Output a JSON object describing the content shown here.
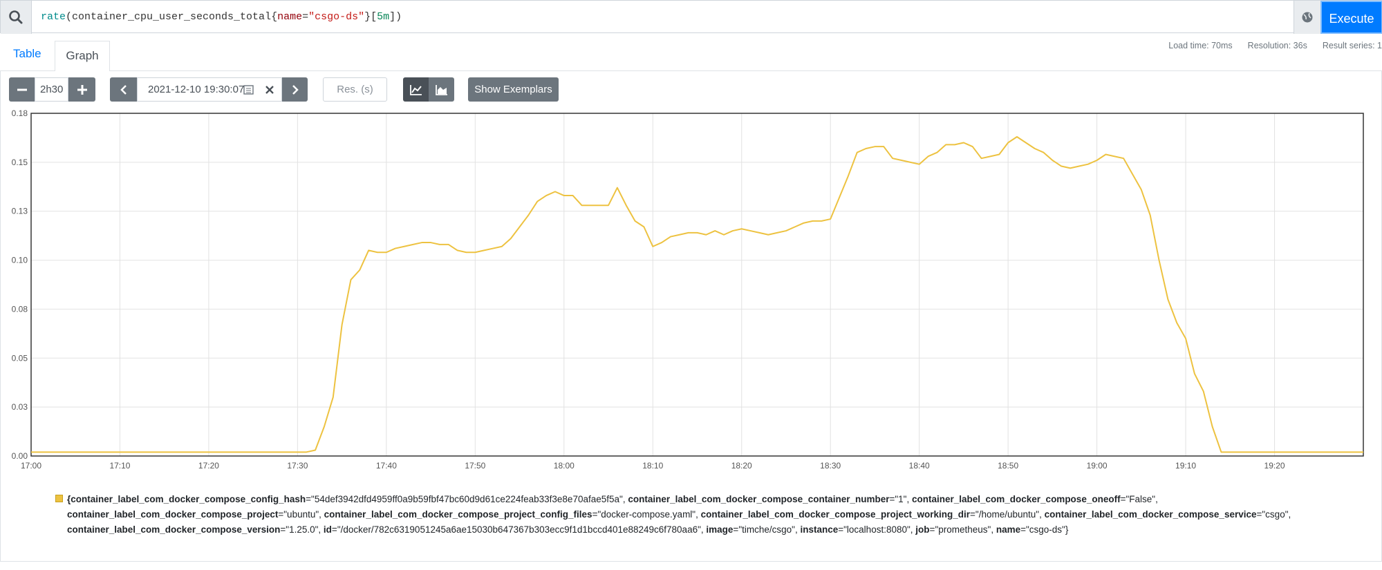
{
  "query": {
    "segments": [
      {
        "text": "rate",
        "color": "#008b8b"
      },
      {
        "text": "(container_cpu_user_seconds_total{",
        "color": "#333333"
      },
      {
        "text": "name",
        "color": "#93000a"
      },
      {
        "text": "=",
        "color": "#333333"
      },
      {
        "text": "\"csgo-ds\"",
        "color": "#c41a16"
      },
      {
        "text": "}[",
        "color": "#333333"
      },
      {
        "text": "5m",
        "color": "#098658"
      },
      {
        "text": "])",
        "color": "#333333"
      }
    ],
    "execute": "Execute"
  },
  "tabs": [
    "Table",
    "Graph"
  ],
  "stats": [
    "Load time: 70ms",
    "Resolution: 36s",
    "Result series: 1"
  ],
  "controls": {
    "range": "2h30",
    "end_time": "2021-12-10 19:30:07",
    "resolution_placeholder": "Res. (s)",
    "exemplars": "Show Exemplars"
  },
  "chart_data": {
    "type": "line",
    "x": [
      "17:00",
      "17:01",
      "17:02",
      "17:03",
      "17:04",
      "17:05",
      "17:06",
      "17:07",
      "17:08",
      "17:09",
      "17:10",
      "17:11",
      "17:12",
      "17:13",
      "17:14",
      "17:15",
      "17:16",
      "17:17",
      "17:18",
      "17:19",
      "17:20",
      "17:21",
      "17:22",
      "17:23",
      "17:24",
      "17:25",
      "17:26",
      "17:27",
      "17:28",
      "17:29",
      "17:30",
      "17:31",
      "17:32",
      "17:33",
      "17:34",
      "17:35",
      "17:36",
      "17:37",
      "17:38",
      "17:39",
      "17:40",
      "17:41",
      "17:42",
      "17:43",
      "17:44",
      "17:45",
      "17:46",
      "17:47",
      "17:48",
      "17:49",
      "17:50",
      "17:51",
      "17:52",
      "17:53",
      "17:54",
      "17:55",
      "17:56",
      "17:57",
      "17:58",
      "17:59",
      "18:00",
      "18:01",
      "18:02",
      "18:03",
      "18:04",
      "18:05",
      "18:06",
      "18:07",
      "18:08",
      "18:09",
      "18:10",
      "18:11",
      "18:12",
      "18:13",
      "18:14",
      "18:15",
      "18:16",
      "18:17",
      "18:18",
      "18:19",
      "18:20",
      "18:21",
      "18:22",
      "18:23",
      "18:24",
      "18:25",
      "18:26",
      "18:27",
      "18:28",
      "18:29",
      "18:30",
      "18:31",
      "18:32",
      "18:33",
      "18:34",
      "18:35",
      "18:36",
      "18:37",
      "18:38",
      "18:39",
      "18:40",
      "18:41",
      "18:42",
      "18:43",
      "18:44",
      "18:45",
      "18:46",
      "18:47",
      "18:48",
      "18:49",
      "18:50",
      "18:51",
      "18:52",
      "18:53",
      "18:54",
      "18:55",
      "18:56",
      "18:57",
      "18:58",
      "18:59",
      "19:00",
      "19:01",
      "19:02",
      "19:03",
      "19:04",
      "19:05",
      "19:06",
      "19:07",
      "19:08",
      "19:09",
      "19:10",
      "19:11",
      "19:12",
      "19:13",
      "19:14",
      "19:15",
      "19:16",
      "19:17",
      "19:18",
      "19:19",
      "19:20",
      "19:21",
      "19:22",
      "19:23",
      "19:24",
      "19:25",
      "19:26",
      "19:27",
      "19:28",
      "19:29",
      "19:30"
    ],
    "series": [
      {
        "color": "#edc240",
        "values": [
          0.002,
          0.002,
          0.002,
          0.002,
          0.002,
          0.002,
          0.002,
          0.002,
          0.002,
          0.002,
          0.002,
          0.002,
          0.002,
          0.002,
          0.002,
          0.002,
          0.002,
          0.002,
          0.002,
          0.002,
          0.002,
          0.002,
          0.002,
          0.002,
          0.002,
          0.002,
          0.002,
          0.002,
          0.002,
          0.002,
          0.002,
          0.002,
          0.003,
          0.015,
          0.03,
          0.067,
          0.09,
          0.095,
          0.105,
          0.104,
          0.104,
          0.106,
          0.107,
          0.108,
          0.109,
          0.109,
          0.108,
          0.108,
          0.105,
          0.104,
          0.104,
          0.105,
          0.106,
          0.107,
          0.111,
          0.117,
          0.123,
          0.13,
          0.133,
          0.135,
          0.133,
          0.133,
          0.128,
          0.128,
          0.128,
          0.128,
          0.137,
          0.128,
          0.12,
          0.117,
          0.107,
          0.109,
          0.112,
          0.113,
          0.114,
          0.114,
          0.113,
          0.115,
          0.113,
          0.115,
          0.116,
          0.115,
          0.114,
          0.113,
          0.114,
          0.115,
          0.117,
          0.119,
          0.12,
          0.12,
          0.121,
          0.132,
          0.143,
          0.155,
          0.157,
          0.158,
          0.158,
          0.152,
          0.151,
          0.15,
          0.149,
          0.153,
          0.155,
          0.159,
          0.159,
          0.16,
          0.158,
          0.152,
          0.153,
          0.154,
          0.16,
          0.163,
          0.16,
          0.157,
          0.155,
          0.151,
          0.148,
          0.147,
          0.148,
          0.149,
          0.151,
          0.154,
          0.153,
          0.152,
          0.144,
          0.136,
          0.123,
          0.1,
          0.08,
          0.068,
          0.06,
          0.042,
          0.033,
          0.015,
          0.002,
          0.002,
          0.002,
          0.002,
          0.002,
          0.002,
          0.002,
          0.002,
          0.002,
          0.002,
          0.002,
          0.002,
          0.002,
          0.002,
          0.002,
          0.002,
          0.002
        ]
      }
    ],
    "xlim": [
      "17:00",
      "19:30"
    ],
    "xticks": [
      "17:00",
      "17:10",
      "17:20",
      "17:30",
      "17:40",
      "17:50",
      "18:00",
      "18:10",
      "18:20",
      "18:30",
      "18:40",
      "18:50",
      "19:00",
      "19:10",
      "19:20"
    ],
    "ylim": [
      0,
      0.175
    ],
    "yticks": [
      {
        "value": 0,
        "label": "0.00"
      },
      {
        "value": 0.025,
        "label": "0.03"
      },
      {
        "value": 0.05,
        "label": "0.05"
      },
      {
        "value": 0.075,
        "label": "0.08"
      },
      {
        "value": 0.1,
        "label": "0.10"
      },
      {
        "value": 0.125,
        "label": "0.13"
      },
      {
        "value": 0.15,
        "label": "0.15"
      },
      {
        "value": 0.175,
        "label": "0.18"
      }
    ],
    "grid": true
  },
  "legend": {
    "open": "{",
    "close": "}",
    "assign": "=",
    "separator": ", ",
    "lines": [
      [
        {
          "key": "container_label_com_docker_compose_config_hash",
          "value": "\"54def3942dfd4959ff0a9b59fbf47bc60d9d61ce224feab33f3e8e70afae5f5a\""
        },
        {
          "key": "container_label_com_docker_compose_container_number",
          "value": "\"1\""
        },
        {
          "key": "container_label_com_docker_compose_oneoff",
          "value": "\"False\""
        }
      ],
      [
        {
          "key": "container_label_com_docker_compose_project",
          "value": "\"ubuntu\""
        },
        {
          "key": "container_label_com_docker_compose_project_config_files",
          "value": "\"docker-compose.yaml\""
        },
        {
          "key": "container_label_com_docker_compose_project_working_dir",
          "value": "\"/home/ubuntu\""
        },
        {
          "key": "container_label_com_docker_compose_service",
          "value": "\"csgo\""
        }
      ],
      [
        {
          "key": "container_label_com_docker_compose_version",
          "value": "\"1.25.0\""
        },
        {
          "key": "id",
          "value": "\"/docker/782c6319051245a6ae15030b647367b303ecc9f1d1bccd401e88249c6f780aa6\""
        },
        {
          "key": "image",
          "value": "\"timche/csgo\""
        },
        {
          "key": "instance",
          "value": "\"localhost:8080\""
        },
        {
          "key": "job",
          "value": "\"prometheus\""
        },
        {
          "key": "name",
          "value": "\"csgo-ds\""
        }
      ]
    ]
  }
}
